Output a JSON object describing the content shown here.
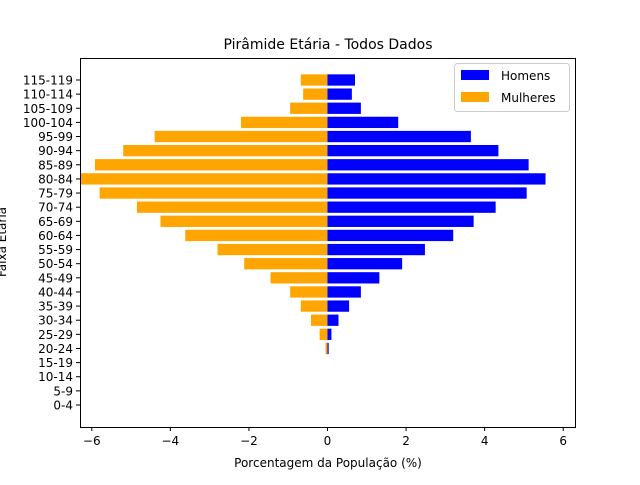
{
  "chart_data": {
    "type": "bar",
    "orientation": "horizontal",
    "title": "Pirâmide Etária - Todos Dados",
    "xlabel": "Porcentagem da População (%)",
    "ylabel": "Faixa Etária",
    "xlim": [
      -6.3,
      6.3
    ],
    "xticks": [
      -6,
      -4,
      -2,
      0,
      2,
      4,
      6
    ],
    "xtick_labels": [
      "−6",
      "−4",
      "−2",
      "0",
      "2",
      "4",
      "6"
    ],
    "categories": [
      "0-4",
      "5-9",
      "10-14",
      "15-19",
      "20-24",
      "25-29",
      "30-34",
      "35-39",
      "40-44",
      "45-49",
      "50-54",
      "55-59",
      "60-64",
      "65-69",
      "70-74",
      "75-79",
      "80-84",
      "85-89",
      "90-94",
      "95-99",
      "100-104",
      "105-109",
      "110-114",
      "115-119"
    ],
    "series": [
      {
        "name": "Homens",
        "color": "#0000ff",
        "values": [
          0,
          0,
          0,
          0,
          0.03,
          0.1,
          0.28,
          0.55,
          0.85,
          1.32,
          1.9,
          2.48,
          3.2,
          3.72,
          4.28,
          5.07,
          5.55,
          5.12,
          4.35,
          3.65,
          1.8,
          0.85,
          0.62,
          0.7
        ]
      },
      {
        "name": "Mulheres",
        "color": "#ffa500",
        "values": [
          0,
          0,
          0,
          0,
          -0.05,
          -0.2,
          -0.42,
          -0.68,
          -0.95,
          -1.45,
          -2.12,
          -2.8,
          -3.62,
          -4.25,
          -4.85,
          -5.8,
          -6.3,
          -5.92,
          -5.2,
          -4.4,
          -2.2,
          -0.95,
          -0.62,
          -0.68
        ]
      }
    ],
    "legend_position": "upper right",
    "grid": false
  }
}
